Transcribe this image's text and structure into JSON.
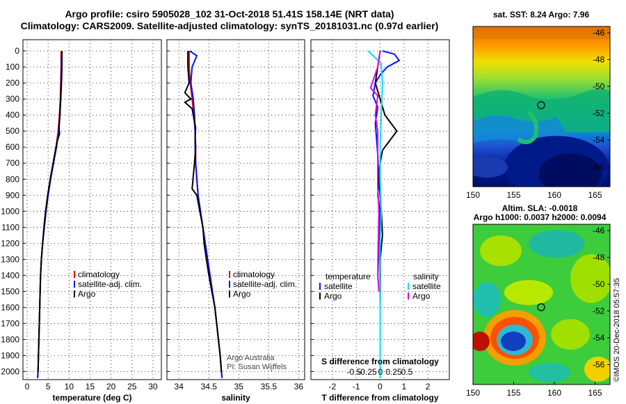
{
  "header": {
    "title_line1": "Argo profile: csiro 5905028_102 31-Oct-2018 51.41S 158.14E (NRT data)",
    "title_line2": "Climatology: CARS2009. Satellite-adjusted climatology: synTS_20181031.nc (0.97d earlier)"
  },
  "colors": {
    "climatology": "#e00000",
    "satellite": "#0010ff",
    "argo": "#000000",
    "sat_salinity": "#00e0ff",
    "argo_salinity": "#e000e0"
  },
  "chart_data": [
    {
      "type": "line",
      "xlabel": "temperature (deg C)",
      "xticks": [
        "0",
        "5",
        "10",
        "15",
        "20",
        "25",
        "30"
      ],
      "xlim": [
        -1,
        32
      ],
      "ylim": [
        2050,
        0
      ],
      "yticks": [
        "0",
        "100",
        "200",
        "300",
        "400",
        "500",
        "600",
        "700",
        "800",
        "900",
        "1000",
        "1100",
        "1200",
        "1300",
        "1400",
        "1500",
        "1600",
        "1700",
        "1800",
        "1900",
        "2000"
      ],
      "grid": true,
      "legend": [
        "climatology",
        "satellite-adj. clim.",
        "Argo"
      ],
      "series": [
        {
          "name": "climatology",
          "color": "#e00000",
          "points": [
            [
              8.1,
              0
            ],
            [
              8.1,
              50
            ],
            [
              8.1,
              100
            ],
            [
              8.0,
              200
            ],
            [
              7.9,
              300
            ],
            [
              7.7,
              400
            ],
            [
              7.4,
              500
            ],
            [
              6.9,
              600
            ],
            [
              6.2,
              700
            ],
            [
              5.5,
              800
            ],
            [
              4.9,
              900
            ],
            [
              4.4,
              1000
            ],
            [
              4.0,
              1100
            ],
            [
              3.7,
              1200
            ],
            [
              3.4,
              1300
            ],
            [
              3.2,
              1400
            ],
            [
              3.1,
              1500
            ],
            [
              3.0,
              1600
            ],
            [
              2.9,
              1700
            ],
            [
              2.8,
              1800
            ],
            [
              2.7,
              1900
            ],
            [
              2.6,
              2000
            ],
            [
              2.5,
              2040
            ]
          ]
        },
        {
          "name": "satellite-adj. clim.",
          "color": "#0010ff",
          "points": [
            [
              8.3,
              0
            ],
            [
              8.3,
              50
            ],
            [
              8.3,
              100
            ],
            [
              8.2,
              200
            ],
            [
              8.0,
              300
            ],
            [
              7.8,
              400
            ],
            [
              7.5,
              500
            ],
            [
              7.0,
              600
            ],
            [
              6.3,
              700
            ],
            [
              5.6,
              800
            ],
            [
              5.0,
              900
            ],
            [
              4.5,
              1000
            ],
            [
              4.1,
              1100
            ],
            [
              3.7,
              1200
            ],
            [
              3.4,
              1300
            ],
            [
              3.2,
              1400
            ],
            [
              3.1,
              1500
            ],
            [
              3.0,
              1600
            ],
            [
              2.9,
              1700
            ],
            [
              2.8,
              1800
            ],
            [
              2.7,
              1900
            ],
            [
              2.6,
              2000
            ],
            [
              2.5,
              2040
            ]
          ]
        },
        {
          "name": "Argo",
          "color": "#000000",
          "points": [
            [
              8.3,
              0
            ],
            [
              8.2,
              50
            ],
            [
              8.2,
              100
            ],
            [
              8.1,
              200
            ],
            [
              8.0,
              300
            ],
            [
              7.8,
              400
            ],
            [
              7.6,
              480
            ],
            [
              7.7,
              520
            ],
            [
              7.2,
              560
            ],
            [
              6.9,
              600
            ],
            [
              6.2,
              700
            ],
            [
              5.5,
              800
            ],
            [
              4.9,
              900
            ],
            [
              4.4,
              1000
            ],
            [
              4.0,
              1100
            ],
            [
              3.7,
              1200
            ],
            [
              3.4,
              1300
            ],
            [
              3.2,
              1400
            ],
            [
              3.1,
              1500
            ],
            [
              3.0,
              1600
            ],
            [
              2.9,
              1700
            ],
            [
              2.8,
              1800
            ],
            [
              2.7,
              1900
            ],
            [
              2.6,
              2000
            ]
          ]
        }
      ]
    },
    {
      "type": "line",
      "xlabel": "salinity",
      "xticks": [
        "34",
        "34.5",
        "35",
        "35.5",
        "36"
      ],
      "xlim": [
        33.8,
        36.1
      ],
      "ylim": [
        2050,
        0
      ],
      "grid": true,
      "legend": [
        "climatology",
        "satellite-adj. clim.",
        "Argo"
      ],
      "annotation": [
        "Argo Australia",
        "PI: Susan Wijffels"
      ],
      "series": [
        {
          "name": "climatology",
          "color": "#e00000",
          "points": [
            [
              34.17,
              0
            ],
            [
              34.17,
              100
            ],
            [
              34.19,
              200
            ],
            [
              34.22,
              300
            ],
            [
              34.25,
              400
            ],
            [
              34.27,
              500
            ],
            [
              34.28,
              600
            ],
            [
              34.28,
              700
            ],
            [
              34.3,
              800
            ],
            [
              34.32,
              900
            ],
            [
              34.36,
              1000
            ],
            [
              34.4,
              1100
            ],
            [
              34.44,
              1200
            ],
            [
              34.48,
              1300
            ],
            [
              34.52,
              1400
            ],
            [
              34.56,
              1500
            ],
            [
              34.6,
              1600
            ],
            [
              34.63,
              1700
            ],
            [
              34.66,
              1800
            ],
            [
              34.69,
              1900
            ],
            [
              34.71,
              2000
            ],
            [
              34.72,
              2040
            ]
          ]
        },
        {
          "name": "satellite-adj. clim.",
          "color": "#0010ff",
          "points": [
            [
              34.18,
              0
            ],
            [
              34.3,
              30
            ],
            [
              34.22,
              100
            ],
            [
              34.2,
              200
            ],
            [
              34.24,
              300
            ],
            [
              34.26,
              400
            ],
            [
              34.27,
              500
            ],
            [
              34.27,
              600
            ],
            [
              34.28,
              700
            ],
            [
              34.3,
              800
            ],
            [
              34.32,
              900
            ],
            [
              34.36,
              1000
            ],
            [
              34.4,
              1100
            ],
            [
              34.44,
              1200
            ],
            [
              34.48,
              1300
            ],
            [
              34.52,
              1400
            ],
            [
              34.56,
              1500
            ],
            [
              34.6,
              1600
            ],
            [
              34.63,
              1700
            ],
            [
              34.66,
              1800
            ],
            [
              34.69,
              1900
            ],
            [
              34.71,
              2000
            ],
            [
              34.72,
              2040
            ]
          ]
        },
        {
          "name": "Argo",
          "color": "#000000",
          "points": [
            [
              34.15,
              0
            ],
            [
              34.15,
              100
            ],
            [
              34.17,
              200
            ],
            [
              34.1,
              260
            ],
            [
              34.2,
              300
            ],
            [
              34.1,
              320
            ],
            [
              34.22,
              360
            ],
            [
              34.25,
              420
            ],
            [
              34.28,
              480
            ],
            [
              34.27,
              540
            ],
            [
              34.28,
              600
            ],
            [
              34.26,
              700
            ],
            [
              34.24,
              780
            ],
            [
              34.22,
              860
            ],
            [
              34.3,
              900
            ],
            [
              34.35,
              1000
            ],
            [
              34.4,
              1100
            ],
            [
              34.42,
              1200
            ],
            [
              34.46,
              1300
            ],
            [
              34.5,
              1400
            ],
            [
              34.55,
              1500
            ],
            [
              34.6,
              1600
            ],
            [
              34.63,
              1700
            ],
            [
              34.66,
              1800
            ],
            [
              34.69,
              1900
            ],
            [
              34.71,
              2000
            ]
          ]
        }
      ]
    },
    {
      "type": "line",
      "xlabel": "T difference from climatology",
      "xticks": [
        "-2",
        "-1",
        "0",
        "1",
        "2"
      ],
      "xlim": [
        -2.9,
        2.9
      ],
      "xlabel_top": "S difference from climatology",
      "xticks_top": [
        "-0.5",
        "-0.25",
        "0",
        "0.25",
        "0.5"
      ],
      "ylim": [
        2050,
        0
      ],
      "grid": true,
      "legend_left": [
        "temperature",
        "satellite",
        "Argo"
      ],
      "legend_right": [
        "salinity",
        "satellite",
        "Argo"
      ],
      "series": [
        {
          "name": "satellite",
          "color": "#0010ff",
          "points": [
            [
              0.1,
              0
            ],
            [
              0.6,
              20
            ],
            [
              0.8,
              60
            ],
            [
              0.3,
              100
            ],
            [
              0.0,
              150
            ],
            [
              -0.2,
              200
            ],
            [
              -0.3,
              280
            ],
            [
              -0.1,
              350
            ],
            [
              -0.2,
              450
            ],
            [
              -0.15,
              550
            ],
            [
              -0.1,
              650
            ],
            [
              -0.05,
              800
            ],
            [
              -0.1,
              900
            ],
            [
              0.0,
              1000
            ],
            [
              -0.05,
              1200
            ],
            [
              0.0,
              1500
            ],
            [
              0.0,
              2040
            ]
          ]
        },
        {
          "name": "Argo",
          "color": "#000000",
          "points": [
            [
              0.0,
              0
            ],
            [
              -0.1,
              100
            ],
            [
              -0.2,
              200
            ],
            [
              0.0,
              300
            ],
            [
              0.2,
              400
            ],
            [
              0.5,
              460
            ],
            [
              0.7,
              500
            ],
            [
              0.4,
              560
            ],
            [
              0.1,
              620
            ],
            [
              0.0,
              700
            ],
            [
              -0.05,
              800
            ],
            [
              0.05,
              1000
            ],
            [
              0.1,
              1150
            ],
            [
              0.0,
              1300
            ],
            [
              0.0,
              1500
            ]
          ]
        },
        {
          "name": "satellite S",
          "color": "#00e0ff",
          "points": [
            [
              -0.5,
              0
            ],
            [
              0.05,
              80
            ],
            [
              0.1,
              200
            ],
            [
              0.05,
              400
            ],
            [
              0.0,
              600
            ],
            [
              0.0,
              800
            ],
            [
              0.05,
              1000
            ],
            [
              0.0,
              1200
            ],
            [
              -0.02,
              1400
            ],
            [
              0.0,
              1600
            ],
            [
              0.0,
              2040
            ]
          ]
        },
        {
          "name": "Argo S",
          "color": "#e000e0",
          "points": [
            [
              0.0,
              0
            ],
            [
              -0.1,
              100
            ],
            [
              -0.4,
              230
            ],
            [
              -0.1,
              280
            ],
            [
              -0.2,
              400
            ],
            [
              -0.1,
              500
            ],
            [
              -0.1,
              700
            ],
            [
              -0.1,
              850
            ],
            [
              -0.05,
              1000
            ],
            [
              -0.08,
              1200
            ],
            [
              -0.1,
              1400
            ],
            [
              -0.05,
              1500
            ]
          ]
        }
      ]
    }
  ],
  "maps": {
    "sst": {
      "title": "sat. SST: 8.24 Argo: 7.96",
      "yticks": [
        "-46",
        "-48",
        "-50",
        "-52",
        "-54",
        "-56"
      ],
      "xticks": [
        "150",
        "155",
        "160",
        "165"
      ]
    },
    "sla": {
      "title_line1": "Altim. SLA: -0.0018",
      "title_line2": "Argo h1000: 0.0037 h2000: 0.0094",
      "yticks": [
        "-46",
        "-48",
        "-50",
        "-52",
        "-54",
        "-56"
      ],
      "xticks": [
        "150",
        "155",
        "160",
        "165"
      ]
    },
    "credit": "©IMOS 20-Dec-2018 05:57:35"
  }
}
